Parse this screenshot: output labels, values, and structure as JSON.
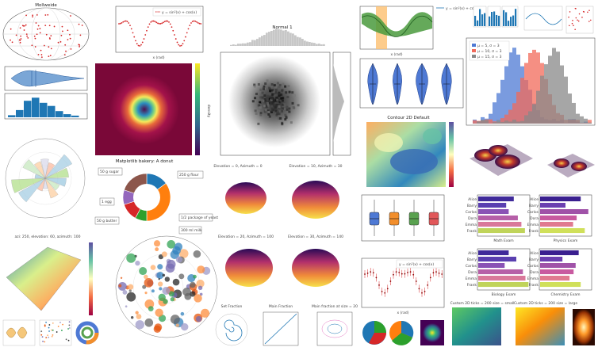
{
  "panels": {
    "mollweide": {
      "title": "Mollweide"
    },
    "sine_line": {
      "legend": "y = sin²(x) + cos(x)",
      "xlabel": "x (rad)"
    },
    "normal1": {
      "title": "Normal 1"
    },
    "bands": {
      "xlabel": "x (rad)"
    },
    "legend_line": {
      "legend": "y = sin²(x) + cos(x)"
    },
    "heatmap": {
      "title": "Matplotlib bakery: A donut",
      "colorbar": "density"
    },
    "violin_top": {
      "title": "Violin"
    },
    "contour": {
      "title": "Contour 2D Default"
    },
    "donut": {
      "labels": [
        "50 g sugar",
        "250 g flour",
        "1 egg",
        "50 g butter",
        "1/2 package of yeast",
        "300 ml milk"
      ]
    },
    "elevations": [
      "Elevation = 0, Azimuth = 0",
      "Elevation = 10, Azimuth = 30",
      "Elevation = 20, Azimuth = 100",
      "Elevation = 30, Azimuth = 140"
    ],
    "surface3d": {
      "title": "azi: 250, elevation: 60, azimuth: 100"
    },
    "bars_math": {
      "title": "Math Exam",
      "names": [
        "Alice",
        "Barry",
        "Carlos",
        "Dora",
        "Emma",
        "Frank"
      ],
      "values": [
        70,
        55,
        60,
        78,
        85,
        92
      ]
    },
    "bars_physics": {
      "title": "Physics Exam",
      "names": [
        "Alice",
        "Barry",
        "Carlos",
        "Dora",
        "Emma",
        "Frank"
      ],
      "values": [
        80,
        50,
        95,
        72,
        65,
        88
      ]
    },
    "bars_biology": {
      "title": "Biology Exam",
      "names": [
        "Alice",
        "Barry",
        "Carlos",
        "Dora",
        "Emma",
        "Frank"
      ],
      "values": [
        60,
        75,
        52,
        88,
        93,
        99
      ]
    },
    "bars_chem": {
      "title": "Chemistry Exam",
      "names": [
        "Alice",
        "Barry",
        "Carlos",
        "Dora",
        "Emma",
        "Frank"
      ],
      "values": [
        76,
        44,
        70,
        66,
        58,
        80
      ]
    },
    "errorbar": {
      "legend": "y = sin²(x) + cos(x)",
      "xlabel": "x (rad)"
    },
    "hist_overlap": {
      "legend": [
        "μ = 5, σ = 3",
        "μ = 10, σ = 3",
        "μ = 15, σ = 3"
      ]
    },
    "small_titles": [
      "Custom 2D ticks = 200 size = small",
      "Custom 2D ticks = 200 size = large"
    ],
    "bottom_small": [
      "Set Fraction",
      "Main Fraction",
      "Main fraction at size = 20"
    ]
  },
  "chart_data": [
    {
      "type": "bar",
      "title": "Math Exam",
      "categories": [
        "Alice",
        "Barry",
        "Carlos",
        "Dora",
        "Emma",
        "Frank"
      ],
      "values": [
        70,
        55,
        60,
        78,
        85,
        92
      ]
    },
    {
      "type": "bar",
      "title": "Physics Exam",
      "categories": [
        "Alice",
        "Barry",
        "Carlos",
        "Dora",
        "Emma",
        "Frank"
      ],
      "values": [
        80,
        50,
        95,
        72,
        65,
        88
      ]
    },
    {
      "type": "pie",
      "labels": [
        "50 g sugar",
        "250 g flour",
        "1 egg",
        "50 g butter",
        "1/2 package of yeast",
        "300 ml milk"
      ],
      "values": [
        15,
        35,
        8,
        12,
        10,
        20
      ]
    },
    {
      "type": "bar",
      "title": "",
      "categories": [
        "-2",
        "-1",
        "0",
        "1",
        "2"
      ],
      "values": [
        20,
        60,
        95,
        55,
        18
      ]
    }
  ],
  "colors": {
    "blue": "#1f77b4",
    "pink": "#c85aa0",
    "green": "#2ca02c",
    "purple": "#9467bd",
    "red": "#d62728",
    "orange": "#ff7f0e"
  }
}
